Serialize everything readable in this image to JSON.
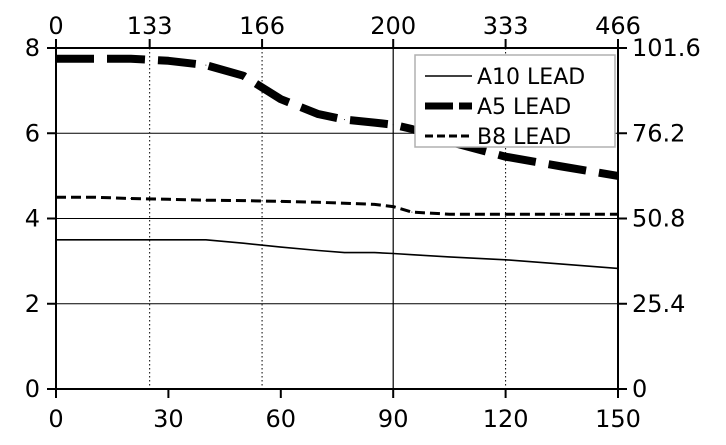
{
  "chart_data": {
    "type": "line",
    "x": [
      0,
      10,
      20,
      30,
      40,
      50,
      60,
      70,
      77,
      85,
      90,
      95,
      105,
      120,
      135,
      150
    ],
    "series": [
      {
        "name": "A10 LEAD",
        "values": [
          3.5,
          3.5,
          3.5,
          3.5,
          3.5,
          3.42,
          3.33,
          3.25,
          3.2,
          3.2,
          3.18,
          3.15,
          3.1,
          3.03,
          2.93,
          2.83
        ],
        "style": "thin-solid"
      },
      {
        "name": "A5 LEAD",
        "values": [
          7.75,
          7.75,
          7.75,
          7.7,
          7.6,
          7.35,
          6.8,
          6.45,
          6.32,
          6.25,
          6.2,
          6.1,
          5.8,
          5.45,
          5.22,
          5.0
        ],
        "style": "thick-dashed"
      },
      {
        "name": "B8 LEAD",
        "values": [
          4.5,
          4.5,
          4.47,
          4.45,
          4.43,
          4.42,
          4.4,
          4.38,
          4.36,
          4.33,
          4.28,
          4.15,
          4.1,
          4.1,
          4.1,
          4.1
        ],
        "style": "dashed"
      }
    ],
    "xlim": [
      0,
      150
    ],
    "ylim": [
      0,
      8
    ],
    "x_ticks": [
      0,
      30,
      60,
      90,
      120,
      150
    ],
    "y_ticks": [
      0,
      2,
      4,
      6,
      8
    ],
    "top_axis": {
      "tick_positions": [
        0,
        25,
        55,
        90,
        120,
        150
      ],
      "tick_labels": [
        "0",
        "133",
        "166",
        "200",
        "333",
        "466"
      ]
    },
    "right_axis": {
      "tick_positions": [
        0,
        2,
        4,
        6,
        8
      ],
      "tick_labels": [
        "0",
        "25.4",
        "50.8",
        "76.2",
        "101.6"
      ]
    },
    "grid": true,
    "legend": "top-right"
  }
}
